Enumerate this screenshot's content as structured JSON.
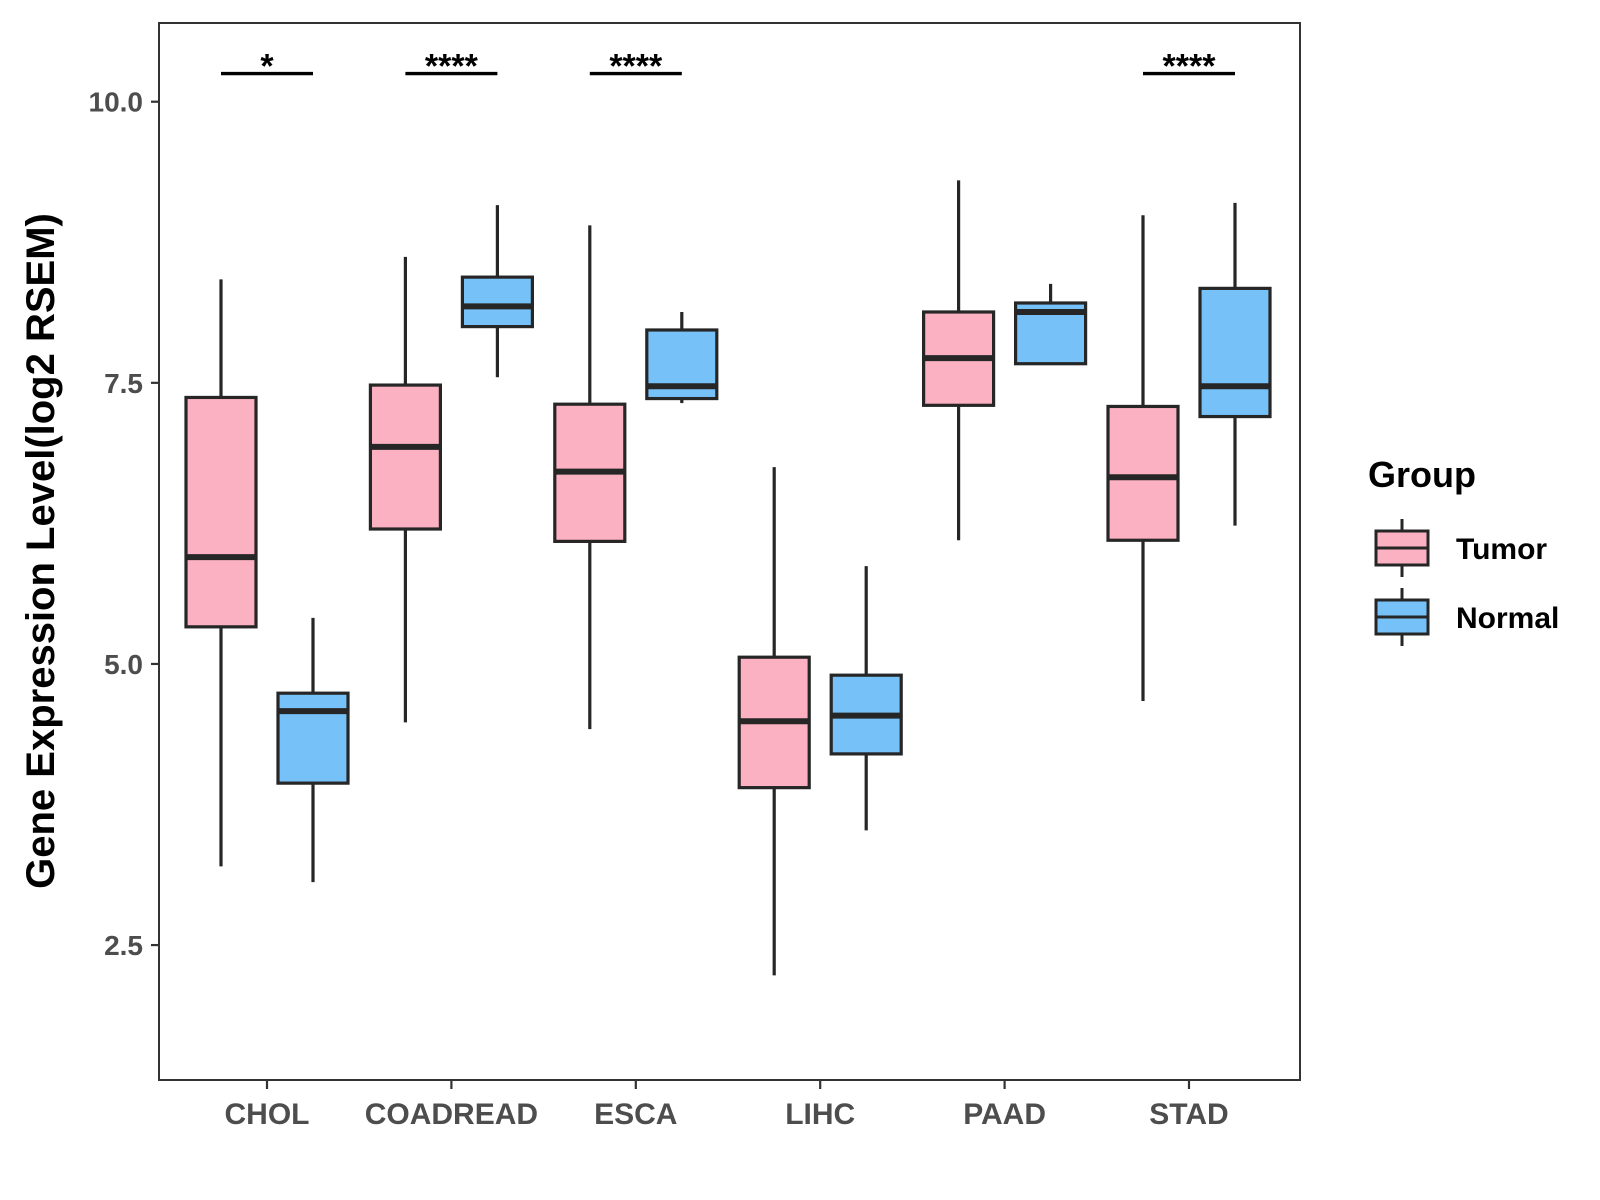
{
  "chart_data": {
    "type": "boxplot",
    "title": "",
    "xlabel": "",
    "ylabel": "Gene Expression Level(log2 RSEM)",
    "ylim": [
      1.3,
      10.7
    ],
    "yticks": [
      {
        "value": 2.5,
        "label": "2.5"
      },
      {
        "value": 5.0,
        "label": "5.0"
      },
      {
        "value": 7.5,
        "label": "7.5"
      },
      {
        "value": 10.0,
        "label": "10.0"
      }
    ],
    "categories": [
      "CHOL",
      "COADREAD",
      "ESCA",
      "LIHC",
      "PAAD",
      "STAD"
    ],
    "legend": {
      "title": "Group",
      "position": "right",
      "entries": [
        {
          "name": "Tumor",
          "color": "#FBB1C2"
        },
        {
          "name": "Normal",
          "color": "#76C1F8"
        }
      ]
    },
    "series": [
      {
        "name": "Tumor",
        "color": "#FBB1C2",
        "boxes": [
          {
            "min": 3.2,
            "q1": 5.33,
            "median": 5.95,
            "q3": 7.37,
            "max": 8.42
          },
          {
            "min": 4.48,
            "q1": 6.2,
            "median": 6.93,
            "q3": 7.48,
            "max": 8.62
          },
          {
            "min": 4.42,
            "q1": 6.09,
            "median": 6.71,
            "q3": 7.31,
            "max": 8.9
          },
          {
            "min": 2.23,
            "q1": 3.9,
            "median": 4.49,
            "q3": 5.06,
            "max": 6.75
          },
          {
            "min": 6.1,
            "q1": 7.3,
            "median": 7.72,
            "q3": 8.13,
            "max": 9.3
          },
          {
            "min": 4.67,
            "q1": 6.1,
            "median": 6.66,
            "q3": 7.29,
            "max": 8.99
          }
        ]
      },
      {
        "name": "Normal",
        "color": "#76C1F8",
        "boxes": [
          {
            "min": 3.06,
            "q1": 3.94,
            "median": 4.58,
            "q3": 4.74,
            "max": 5.41
          },
          {
            "min": 7.55,
            "q1": 8.0,
            "median": 8.18,
            "q3": 8.44,
            "max": 9.08
          },
          {
            "min": 7.32,
            "q1": 7.36,
            "median": 7.47,
            "q3": 7.97,
            "max": 8.13
          },
          {
            "min": 3.52,
            "q1": 4.2,
            "median": 4.54,
            "q3": 4.9,
            "max": 5.87
          },
          {
            "min": 7.67,
            "q1": 7.67,
            "median": 8.13,
            "q3": 8.21,
            "max": 8.38
          },
          {
            "min": 6.23,
            "q1": 7.2,
            "median": 7.47,
            "q3": 8.34,
            "max": 9.1
          }
        ]
      }
    ],
    "significance": [
      {
        "category": "CHOL",
        "label": "*",
        "y": 10.25
      },
      {
        "category": "COADREAD",
        "label": "****",
        "y": 10.25
      },
      {
        "category": "ESCA",
        "label": "****",
        "y": 10.25
      },
      {
        "category": "STAD",
        "label": "****",
        "y": 10.25
      }
    ],
    "style": {
      "outline": "#262626",
      "axis": "#333333",
      "tick_text": "#4d4d4d",
      "background": "#ffffff"
    }
  }
}
